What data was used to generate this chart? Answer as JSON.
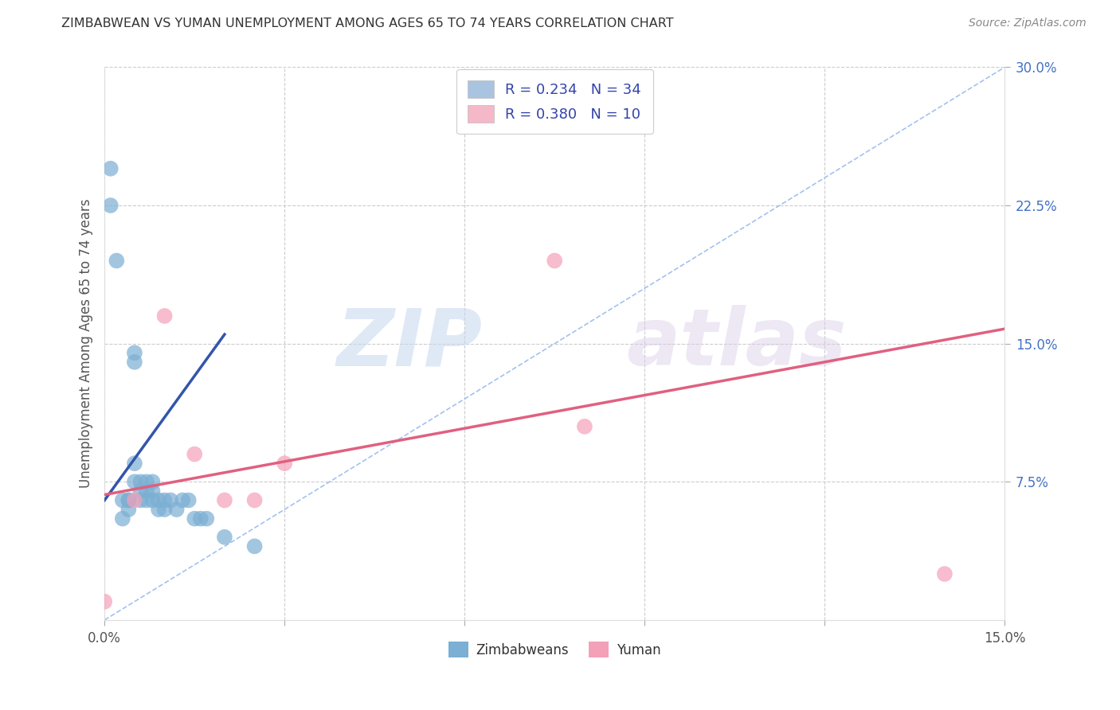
{
  "title": "ZIMBABWEAN VS YUMAN UNEMPLOYMENT AMONG AGES 65 TO 74 YEARS CORRELATION CHART",
  "source": "Source: ZipAtlas.com",
  "ylabel": "Unemployment Among Ages 65 to 74 years",
  "xlim": [
    0.0,
    0.15
  ],
  "ylim": [
    0.0,
    0.3
  ],
  "xtick_positions": [
    0.0,
    0.03,
    0.06,
    0.09,
    0.12,
    0.15
  ],
  "xtick_labels": [
    "0.0%",
    "",
    "",
    "",
    "",
    "15.0%"
  ],
  "yticks_right": [
    0.075,
    0.15,
    0.225,
    0.3
  ],
  "ytick_labels_right": [
    "7.5%",
    "15.0%",
    "22.5%",
    "30.0%"
  ],
  "legend_r_entries": [
    {
      "label": "R = 0.234   N = 34",
      "color": "#a8c4e0"
    },
    {
      "label": "R = 0.380   N = 10",
      "color": "#f4b8c8"
    }
  ],
  "zimbabwean_x": [
    0.001,
    0.001,
    0.002,
    0.003,
    0.003,
    0.004,
    0.004,
    0.004,
    0.005,
    0.005,
    0.005,
    0.005,
    0.006,
    0.006,
    0.006,
    0.007,
    0.007,
    0.007,
    0.008,
    0.008,
    0.008,
    0.009,
    0.009,
    0.01,
    0.01,
    0.011,
    0.012,
    0.013,
    0.014,
    0.015,
    0.016,
    0.017,
    0.02,
    0.025
  ],
  "zimbabwean_y": [
    0.245,
    0.225,
    0.195,
    0.065,
    0.055,
    0.065,
    0.065,
    0.06,
    0.145,
    0.14,
    0.085,
    0.075,
    0.075,
    0.07,
    0.065,
    0.075,
    0.07,
    0.065,
    0.075,
    0.07,
    0.065,
    0.065,
    0.06,
    0.065,
    0.06,
    0.065,
    0.06,
    0.065,
    0.065,
    0.055,
    0.055,
    0.055,
    0.045,
    0.04
  ],
  "yuman_x": [
    0.0,
    0.005,
    0.01,
    0.015,
    0.02,
    0.025,
    0.03,
    0.075,
    0.08,
    0.14
  ],
  "yuman_y": [
    0.01,
    0.065,
    0.165,
    0.09,
    0.065,
    0.065,
    0.085,
    0.195,
    0.105,
    0.025
  ],
  "zim_line_x": [
    0.0,
    0.02
  ],
  "zim_line_y": [
    0.065,
    0.155
  ],
  "yuman_line_x": [
    0.0,
    0.15
  ],
  "yuman_line_y": [
    0.068,
    0.158
  ],
  "diagonal_line_x": [
    0.0,
    0.15
  ],
  "diagonal_line_y": [
    0.0,
    0.3
  ],
  "zim_scatter_color": "#7bafd4",
  "yuman_scatter_color": "#f4a0b8",
  "zim_line_color": "#3355aa",
  "yuman_line_color": "#e06080",
  "diagonal_line_color": "#99bbee",
  "watermark_zip": "ZIP",
  "watermark_atlas": "atlas",
  "background_color": "#ffffff",
  "grid_color": "#cccccc"
}
